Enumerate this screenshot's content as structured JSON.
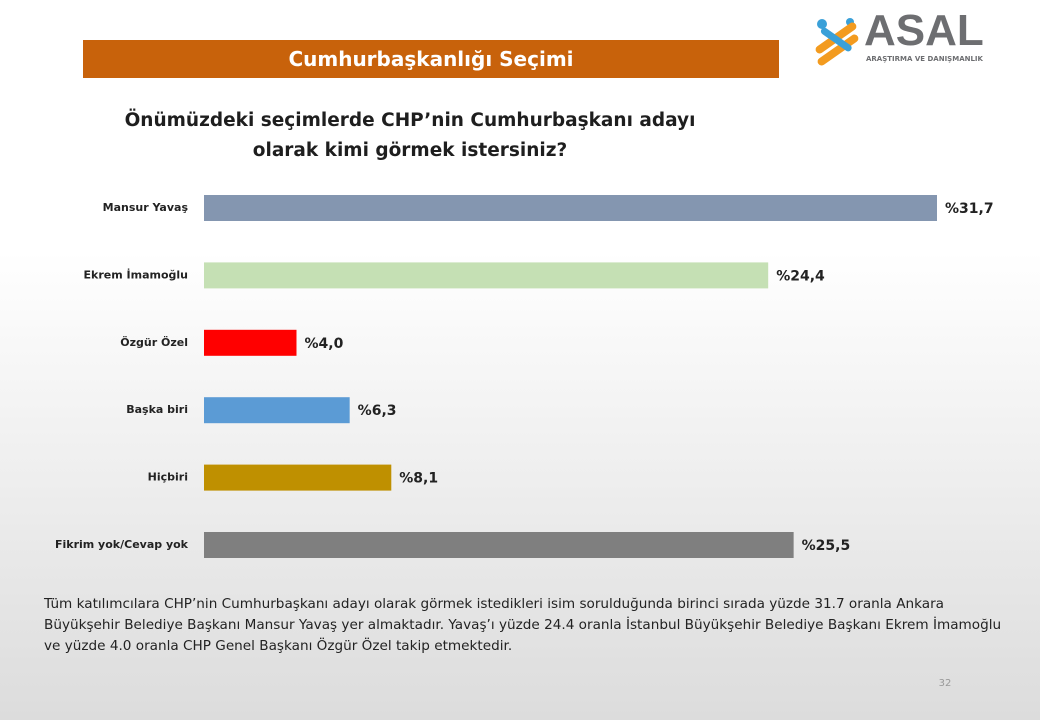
{
  "chart_data": {
    "type": "bar",
    "orientation": "horizontal",
    "banner": "Cumhurbaşkanlığı Seçimi",
    "title": "Önümüzdeki seçimlerde CHP’nin Cumhurbaşkanı adayı olarak kimi görmek istersiniz?",
    "categories": [
      "Mansur Yavaş",
      "Ekrem İmamoğlu",
      "Özgür Özel",
      "Başka biri",
      "Hiçbiri",
      "Fikrim yok/Cevap yok"
    ],
    "values": [
      31.7,
      24.4,
      4.0,
      6.3,
      8.1,
      25.5
    ],
    "value_labels": [
      "%31,7",
      "%24,4",
      "%4,0",
      "%6,3",
      "%8,1",
      "%25,5"
    ],
    "colors": [
      "#8496b0",
      "#c5e0b4",
      "#ff0000",
      "#5b9bd5",
      "#bf9000",
      "#7f7f7f"
    ],
    "note": "Tüm katılımcılara CHP’nin Cumhurbaşkanı adayı olarak görmek istedikleri isim sorulduğunda birinci sırada yüzde 31.7 oranla Ankara Büyükşehir Belediye Başkanı Mansur Yavaş yer almaktadır. Yavaş’ı yüzde 24.4 oranla İstanbul Büyükşehir Belediye Başkanı Ekrem İmamoğlu ve yüzde 4.0 oranla CHP Genel Başkanı Özgür Özel takip etmektedir.",
    "page_number": "32",
    "logo": {
      "name": "ASAL",
      "subtitle": "ARAŞTIRMA VE DANIŞMANLIK"
    }
  }
}
